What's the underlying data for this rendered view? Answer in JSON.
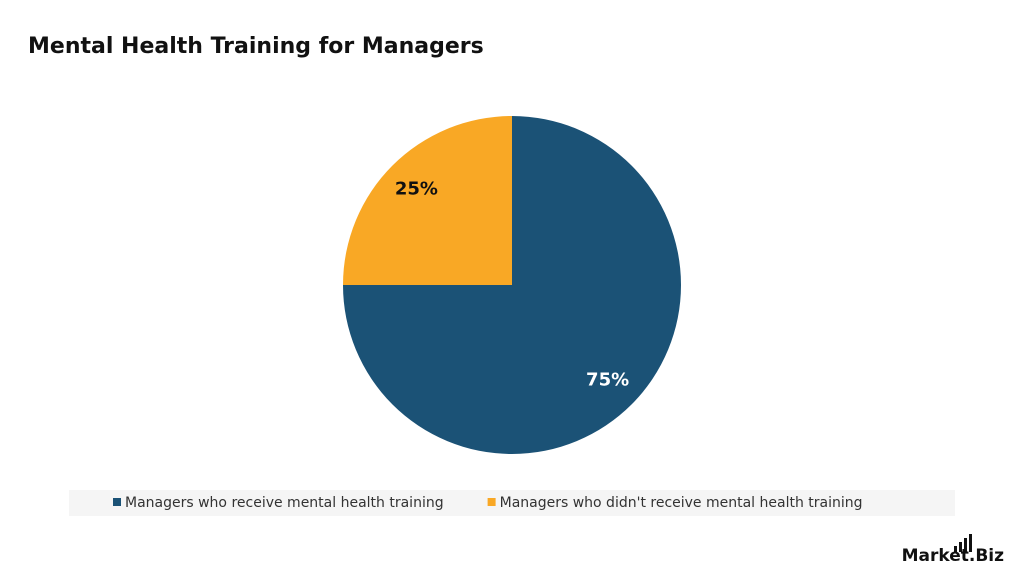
{
  "chart_data": {
    "type": "pie",
    "title": "Mental Health Training for Managers",
    "categories": [
      "Managers who receive mental health training",
      "Managers who didn't receive mental health training"
    ],
    "values": [
      75,
      25
    ],
    "value_labels": [
      "75%",
      "25%"
    ],
    "colors": [
      "#1b5276",
      "#f9a825"
    ],
    "label_colors": [
      "#ffffff",
      "#111111"
    ],
    "legend": "bottom",
    "watermark": "Market.Biz"
  }
}
